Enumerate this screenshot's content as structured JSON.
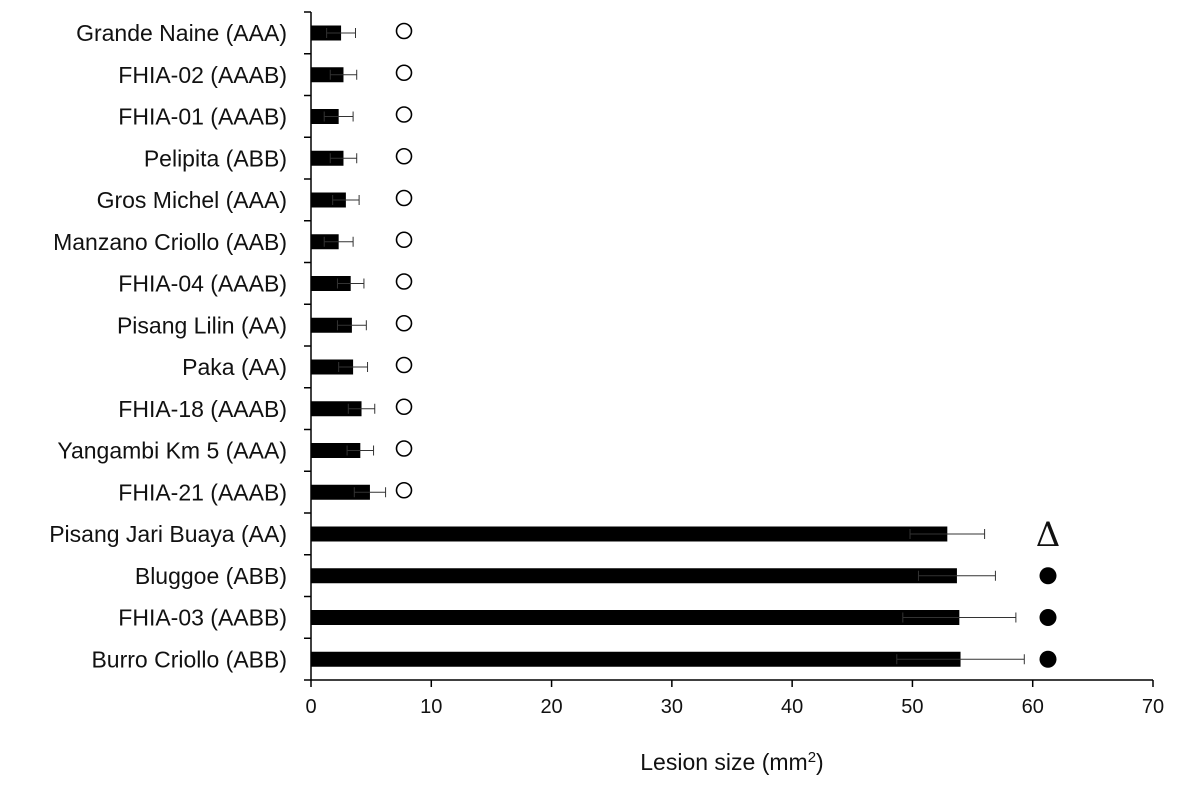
{
  "chart_data": {
    "type": "bar",
    "orientation": "horizontal",
    "categories": [
      "Grande Naine (AAA)",
      "FHIA-02 (AAAB)",
      "FHIA-01 (AAAB)",
      "Pelipita (ABB)",
      "Gros Michel (AAA)",
      "Manzano Criollo (AAB)",
      "FHIA-04 (AAAB)",
      "Pisang Lilin (AA)",
      "Paka (AA)",
      "FHIA-18 (AAAB)",
      "Yangambi Km 5 (AAA)",
      "FHIA-21 (AAAB)",
      "Pisang Jari Buaya (AA)",
      "Bluggoe (ABB)",
      "FHIA-03 (AABB)",
      "Burro Criollo (ABB)"
    ],
    "values": [
      2.5,
      2.7,
      2.3,
      2.7,
      2.9,
      2.3,
      3.3,
      3.4,
      3.5,
      4.2,
      4.1,
      4.9,
      52.9,
      53.7,
      53.9,
      54.0
    ],
    "errors": [
      1.2,
      1.1,
      1.2,
      1.1,
      1.1,
      1.2,
      1.1,
      1.2,
      1.2,
      1.1,
      1.1,
      1.3,
      3.1,
      3.2,
      4.7,
      5.3
    ],
    "markers": [
      "circle-open",
      "circle-open",
      "circle-open",
      "circle-open",
      "circle-open",
      "circle-open",
      "circle-open",
      "circle-open",
      "circle-open",
      "circle-open",
      "circle-open",
      "circle-open",
      "delta",
      "circle-filled",
      "circle-filled",
      "circle-filled"
    ],
    "marker_text": {
      "delta": "Δ"
    },
    "xlabel": "Lesion size (mm",
    "xlabel_superscript": "2",
    "xlabel_suffix": ")",
    "xlim": [
      0,
      70
    ],
    "xticks": [
      0,
      10,
      20,
      30,
      40,
      50,
      60,
      70
    ],
    "grid": false,
    "colors": {
      "bar": "#000000",
      "axis": "#000000",
      "error": "#333333"
    }
  }
}
